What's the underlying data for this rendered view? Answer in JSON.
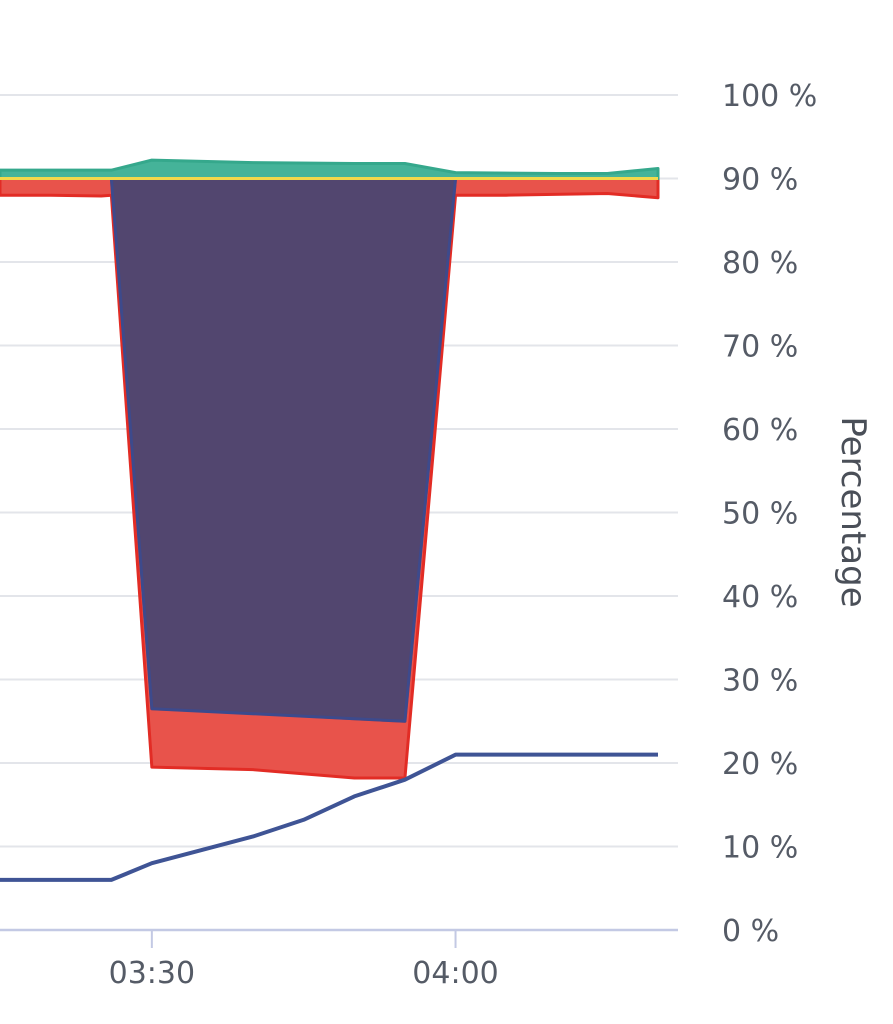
{
  "chart_data": {
    "type": "area",
    "title": "",
    "xlabel": "",
    "ylabel": "Percentage",
    "ylim": [
      0,
      100
    ],
    "xlim": [
      "03:15",
      "04:20"
    ],
    "y_ticks": [
      "0 %",
      "10 %",
      "20 %",
      "30 %",
      "40 %",
      "50 %",
      "60 %",
      "70 %",
      "80 %",
      "90 %",
      "100 %"
    ],
    "x_ticks": [
      {
        "time": "03:30",
        "label": "03:30"
      },
      {
        "time": "04:00",
        "label": "04:00"
      }
    ],
    "grid": true,
    "legend": "none",
    "x": [
      "03:15",
      "03:20",
      "03:25",
      "03:30",
      "03:35",
      "03:40",
      "03:45",
      "03:50",
      "03:55",
      "04:00",
      "04:05",
      "04:10",
      "04:15",
      "04:20"
    ],
    "series": [
      {
        "color": "#e8534b",
        "stroke": "#e22c25",
        "points": [
          {
            "t": "03:15",
            "y0": 88.0,
            "y1": 90.0
          },
          {
            "t": "03:20",
            "y0": 88.0,
            "y1": 90.0
          },
          {
            "t": "03:25",
            "y0": 87.9,
            "y1": 90.0
          },
          {
            "t": "03:26",
            "y0": 88.0,
            "y1": 90.0
          },
          {
            "t": "03:30",
            "y0": 19.5,
            "y1": 26.5
          },
          {
            "t": "03:40",
            "y0": 19.2,
            "y1": 26.0
          },
          {
            "t": "03:50",
            "y0": 18.2,
            "y1": 25.3
          },
          {
            "t": "03:55",
            "y0": 18.2,
            "y1": 25.0
          },
          {
            "t": "04:00",
            "y0": 88.0,
            "y1": 90.0
          },
          {
            "t": "04:05",
            "y0": 88.0,
            "y1": 90.0
          },
          {
            "t": "04:15",
            "y0": 88.2,
            "y1": 90.0
          },
          {
            "t": "04:20",
            "y0": 87.7,
            "y1": 90.0
          }
        ]
      },
      {
        "color": "#52466f",
        "stroke": "#3d4a8c",
        "points": [
          {
            "t": "03:26",
            "y0": 90.0,
            "y1": 90.0
          },
          {
            "t": "03:30",
            "y0": 26.5,
            "y1": 90.0
          },
          {
            "t": "03:55",
            "y0": 25.0,
            "y1": 90.0
          },
          {
            "t": "04:00",
            "y0": 90.0,
            "y1": 90.0
          }
        ]
      },
      {
        "color": "#45b399",
        "stroke": "#35a88c",
        "points": [
          {
            "t": "03:15",
            "y0": 90.0,
            "y1": 91.0
          },
          {
            "t": "03:20",
            "y0": 90.0,
            "y1": 91.0
          },
          {
            "t": "03:26",
            "y0": 90.0,
            "y1": 91.0
          },
          {
            "t": "03:30",
            "y0": 90.0,
            "y1": 92.2
          },
          {
            "t": "03:40",
            "y0": 90.0,
            "y1": 91.9
          },
          {
            "t": "03:50",
            "y0": 90.0,
            "y1": 91.8
          },
          {
            "t": "03:55",
            "y0": 90.0,
            "y1": 91.8
          },
          {
            "t": "04:00",
            "y0": 90.0,
            "y1": 90.7
          },
          {
            "t": "04:10",
            "y0": 90.0,
            "y1": 90.6
          },
          {
            "t": "04:15",
            "y0": 90.0,
            "y1": 90.6
          },
          {
            "t": "04:20",
            "y0": 90.0,
            "y1": 91.2
          }
        ]
      },
      {
        "color": "#f2d84b",
        "line_only": true,
        "points": [
          {
            "t": "03:15",
            "y": 90.0
          },
          {
            "t": "04:20",
            "y": 90.0
          }
        ]
      },
      {
        "color": "#3f5495",
        "line_only": true,
        "points": [
          {
            "t": "03:15",
            "y": 6.0
          },
          {
            "t": "03:26",
            "y": 6.0
          },
          {
            "t": "03:30",
            "y": 8.0
          },
          {
            "t": "03:35",
            "y": 9.6
          },
          {
            "t": "03:40",
            "y": 11.2
          },
          {
            "t": "03:45",
            "y": 13.2
          },
          {
            "t": "03:50",
            "y": 16.0
          },
          {
            "t": "03:55",
            "y": 18.0
          },
          {
            "t": "04:00",
            "y": 21.0
          },
          {
            "t": "04:10",
            "y": 21.0
          },
          {
            "t": "04:20",
            "y": 21.0
          }
        ]
      }
    ]
  }
}
